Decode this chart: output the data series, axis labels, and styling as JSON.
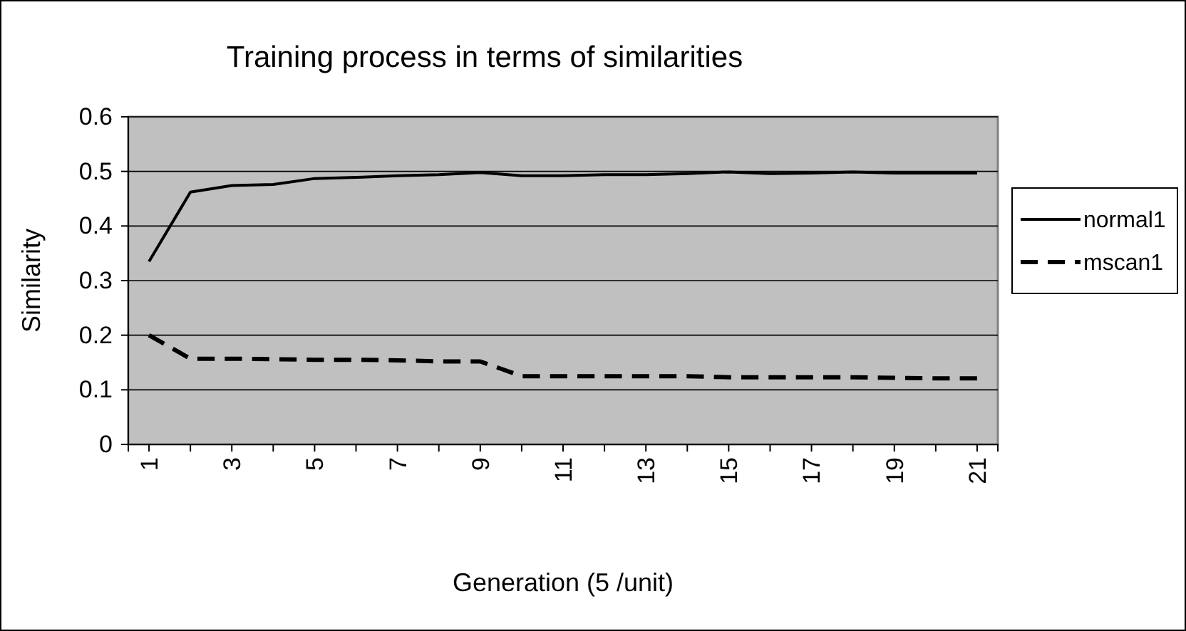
{
  "chart_data": {
    "type": "line",
    "title": "Training process in terms of similarities",
    "xlabel": "Generation (5 /unit)",
    "ylabel": "Similarity",
    "categories": [
      "1",
      null,
      "3",
      null,
      "5",
      null,
      "7",
      null,
      "9",
      null,
      "11",
      null,
      "13",
      null,
      "15",
      null,
      "17",
      null,
      "19",
      null,
      "21"
    ],
    "series": [
      {
        "name": "normal1",
        "color": "#000000",
        "line_style": "solid",
        "values": [
          0.335,
          0.462,
          0.474,
          0.476,
          0.487,
          0.489,
          0.492,
          0.494,
          0.498,
          0.492,
          0.492,
          0.494,
          0.494,
          0.496,
          0.499,
          0.496,
          0.497,
          0.499,
          0.497,
          0.497,
          0.497
        ]
      },
      {
        "name": "mscan1",
        "color": "#000000",
        "line_style": "dashed",
        "values": [
          0.2,
          0.157,
          0.157,
          0.156,
          0.155,
          0.155,
          0.154,
          0.152,
          0.152,
          0.125,
          0.125,
          0.125,
          0.125,
          0.125,
          0.123,
          0.123,
          0.123,
          0.123,
          0.122,
          0.121,
          0.121
        ]
      }
    ],
    "ylim": [
      0,
      0.6
    ],
    "yticks": [
      0,
      0.1,
      0.2,
      0.3,
      0.4,
      0.5,
      0.6
    ],
    "grid": "y",
    "legend": "right",
    "marker": "none"
  }
}
